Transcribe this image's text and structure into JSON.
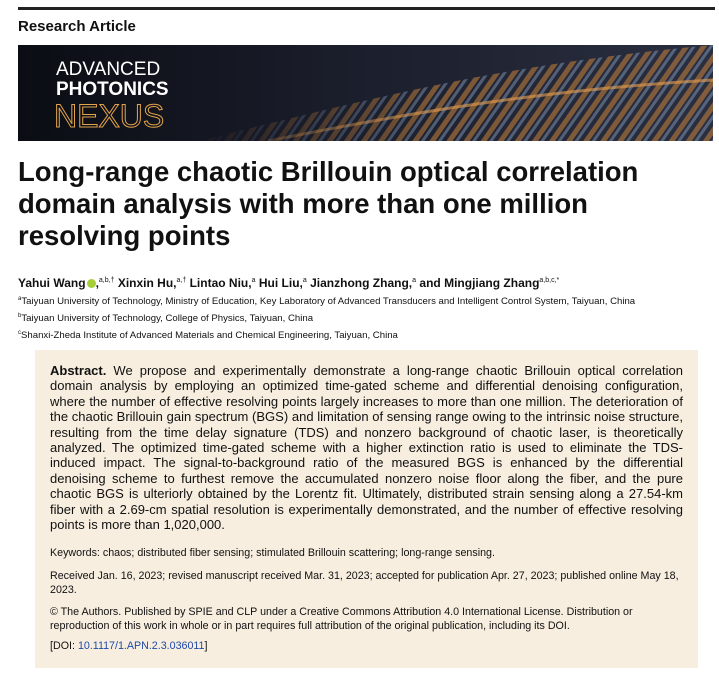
{
  "header": {
    "label": "Research Article"
  },
  "journal": {
    "line1": "ADVANCED",
    "line2": "PHOTONICS",
    "line3": "NEXUS"
  },
  "title": "Long-range chaotic Brillouin optical correlation domain analysis with more than one million resolving points",
  "authors": [
    {
      "name": "Yahui Wang",
      "punct": ",",
      "sup": "a,b,†"
    },
    {
      "name": "Xinxin Hu",
      "punct": ",",
      "sup": "a,†"
    },
    {
      "name": "Lintao Niu",
      "punct": ",",
      "sup": "a"
    },
    {
      "name": "Hui Liu",
      "punct": ",",
      "sup": "a"
    },
    {
      "name": "Jianzhong Zhang",
      "punct": ",",
      "sup": "a"
    },
    {
      "pre": "and",
      "name": "Mingjiang Zhang",
      "sup": "a,b,c,*"
    }
  ],
  "affiliations": [
    {
      "sup": "a",
      "text": "Taiyuan University of Technology, Ministry of Education, Key Laboratory of Advanced Transducers and Intelligent Control System, Taiyuan, China"
    },
    {
      "sup": "b",
      "text": "Taiyuan University of Technology, College of Physics, Taiyuan, China"
    },
    {
      "sup": "c",
      "text": "Shanxi-Zheda Institute of Advanced Materials and Chemical Engineering, Taiyuan, China"
    }
  ],
  "abstract": {
    "label": "Abstract.",
    "text": "We propose and experimentally demonstrate a long-range chaotic Brillouin optical correlation domain analysis by employing an optimized time-gated scheme and differential denoising configuration, where the number of effective resolving points largely increases to more than one million. The deterioration of the chaotic Brillouin gain spectrum (BGS) and limitation of sensing range owing to the intrinsic noise structure, resulting from the time delay signature (TDS) and nonzero background of chaotic laser, is theoretically analyzed. The optimized time-gated scheme with a higher extinction ratio is used to eliminate the TDS-induced impact. The signal-to-background ratio of the measured BGS is enhanced by the differential denoising scheme to furthest remove the accumulated nonzero noise floor along the fiber, and the pure chaotic BGS is ulteriorly obtained by the Lorentz fit. Ultimately, distributed strain sensing along a 27.54-km fiber with a 2.69-cm spatial resolution is experimentally demonstrated, and the number of effective resolving points is more than 1,020,000."
  },
  "keywords": "Keywords: chaos; distributed fiber sensing; stimulated Brillouin scattering; long-range sensing.",
  "history": "Received Jan. 16, 2023; revised manuscript received Mar. 31, 2023; accepted for publication Apr. 27, 2023; published online May 18, 2023.",
  "license": "© The Authors. Published by SPIE and CLP under a Creative Commons Attribution 4.0 International License. Distribution or reproduction of this work in whole or in part requires full attribution of the original publication, including its DOI.",
  "doi": {
    "prefix": "[DOI:",
    "link": "10.1117/1.APN.2.3.036011",
    "suffix": "]"
  }
}
